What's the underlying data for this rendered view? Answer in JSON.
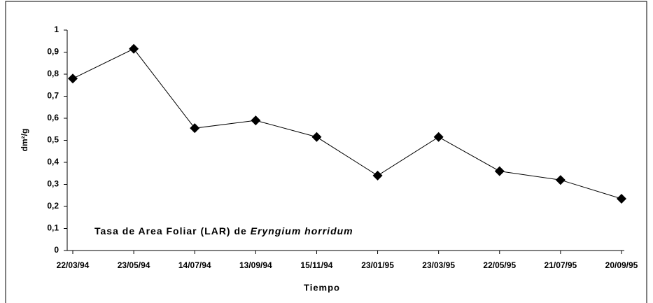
{
  "chart_data": {
    "type": "line",
    "title": "Tasa de Area Foliar (LAR) de",
    "title_species": "Eryngium horridum",
    "x_label": "Tiempo",
    "y_label": "dm²/g",
    "categories": [
      "22/03/94",
      "23/05/94",
      "14/07/94",
      "13/09/94",
      "15/11/94",
      "23/01/95",
      "23/03/95",
      "22/05/95",
      "21/07/95",
      "20/09/95"
    ],
    "values": [
      0.78,
      0.915,
      0.555,
      0.59,
      0.515,
      0.34,
      0.515,
      0.36,
      0.32,
      0.235
    ],
    "color": "#000000",
    "ylim": [
      0,
      1
    ],
    "yticks": [
      0,
      {
        "value": 0.1,
        "label": "0,1"
      },
      {
        "value": 0.2,
        "label": "0,2"
      },
      {
        "value": 0.3,
        "label": "0,3"
      },
      {
        "value": 0.4,
        "label": "0,4"
      },
      {
        "value": 0.5,
        "label": "0,5"
      },
      {
        "value": 0.6,
        "label": "0,6"
      },
      {
        "value": 0.7,
        "label": "0,7"
      },
      {
        "value": 0.8,
        "label": "0,8"
      },
      {
        "value": 0.9,
        "label": "0,9"
      },
      1
    ],
    "grid": false
  }
}
